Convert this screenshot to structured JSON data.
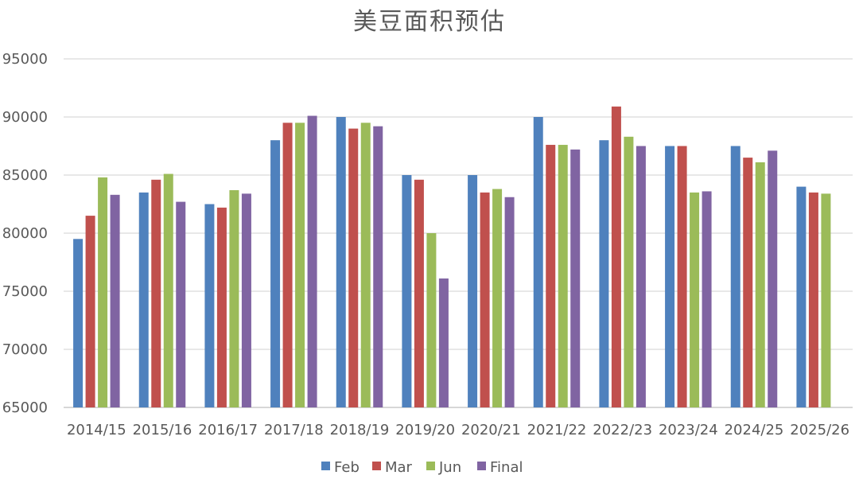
{
  "chart_data": {
    "type": "bar",
    "title": "美豆面积预估",
    "categories": [
      "2014/15",
      "2015/16",
      "2016/17",
      "2017/18",
      "2018/19",
      "2019/20",
      "2020/21",
      "2021/22",
      "2022/23",
      "2023/24",
      "2024/25",
      "2025/26"
    ],
    "series": [
      {
        "name": "Feb",
        "color": "#4f81bd",
        "values": [
          79500,
          83500,
          82500,
          88000,
          90000,
          85000,
          85000,
          90000,
          88000,
          87500,
          87500,
          84000
        ]
      },
      {
        "name": "Mar",
        "color": "#c0504d",
        "values": [
          81500,
          84600,
          82200,
          89500,
          89000,
          84600,
          83500,
          87600,
          90900,
          87500,
          86500,
          83500
        ]
      },
      {
        "name": "Jun",
        "color": "#9bbb59",
        "values": [
          84800,
          85100,
          83700,
          89500,
          89500,
          80000,
          83800,
          87600,
          88300,
          83500,
          86100,
          83400
        ]
      },
      {
        "name": "Final",
        "color": "#8064a2",
        "values": [
          83300,
          82700,
          83400,
          90100,
          89200,
          76100,
          83100,
          87200,
          87500,
          83600,
          87100,
          null
        ]
      }
    ],
    "yticks": [
      65000,
      70000,
      75000,
      80000,
      85000,
      90000,
      95000
    ],
    "ylim": [
      65000,
      95000
    ],
    "xlabel": "",
    "ylabel": "",
    "grid": true,
    "legend_position": "bottom"
  }
}
